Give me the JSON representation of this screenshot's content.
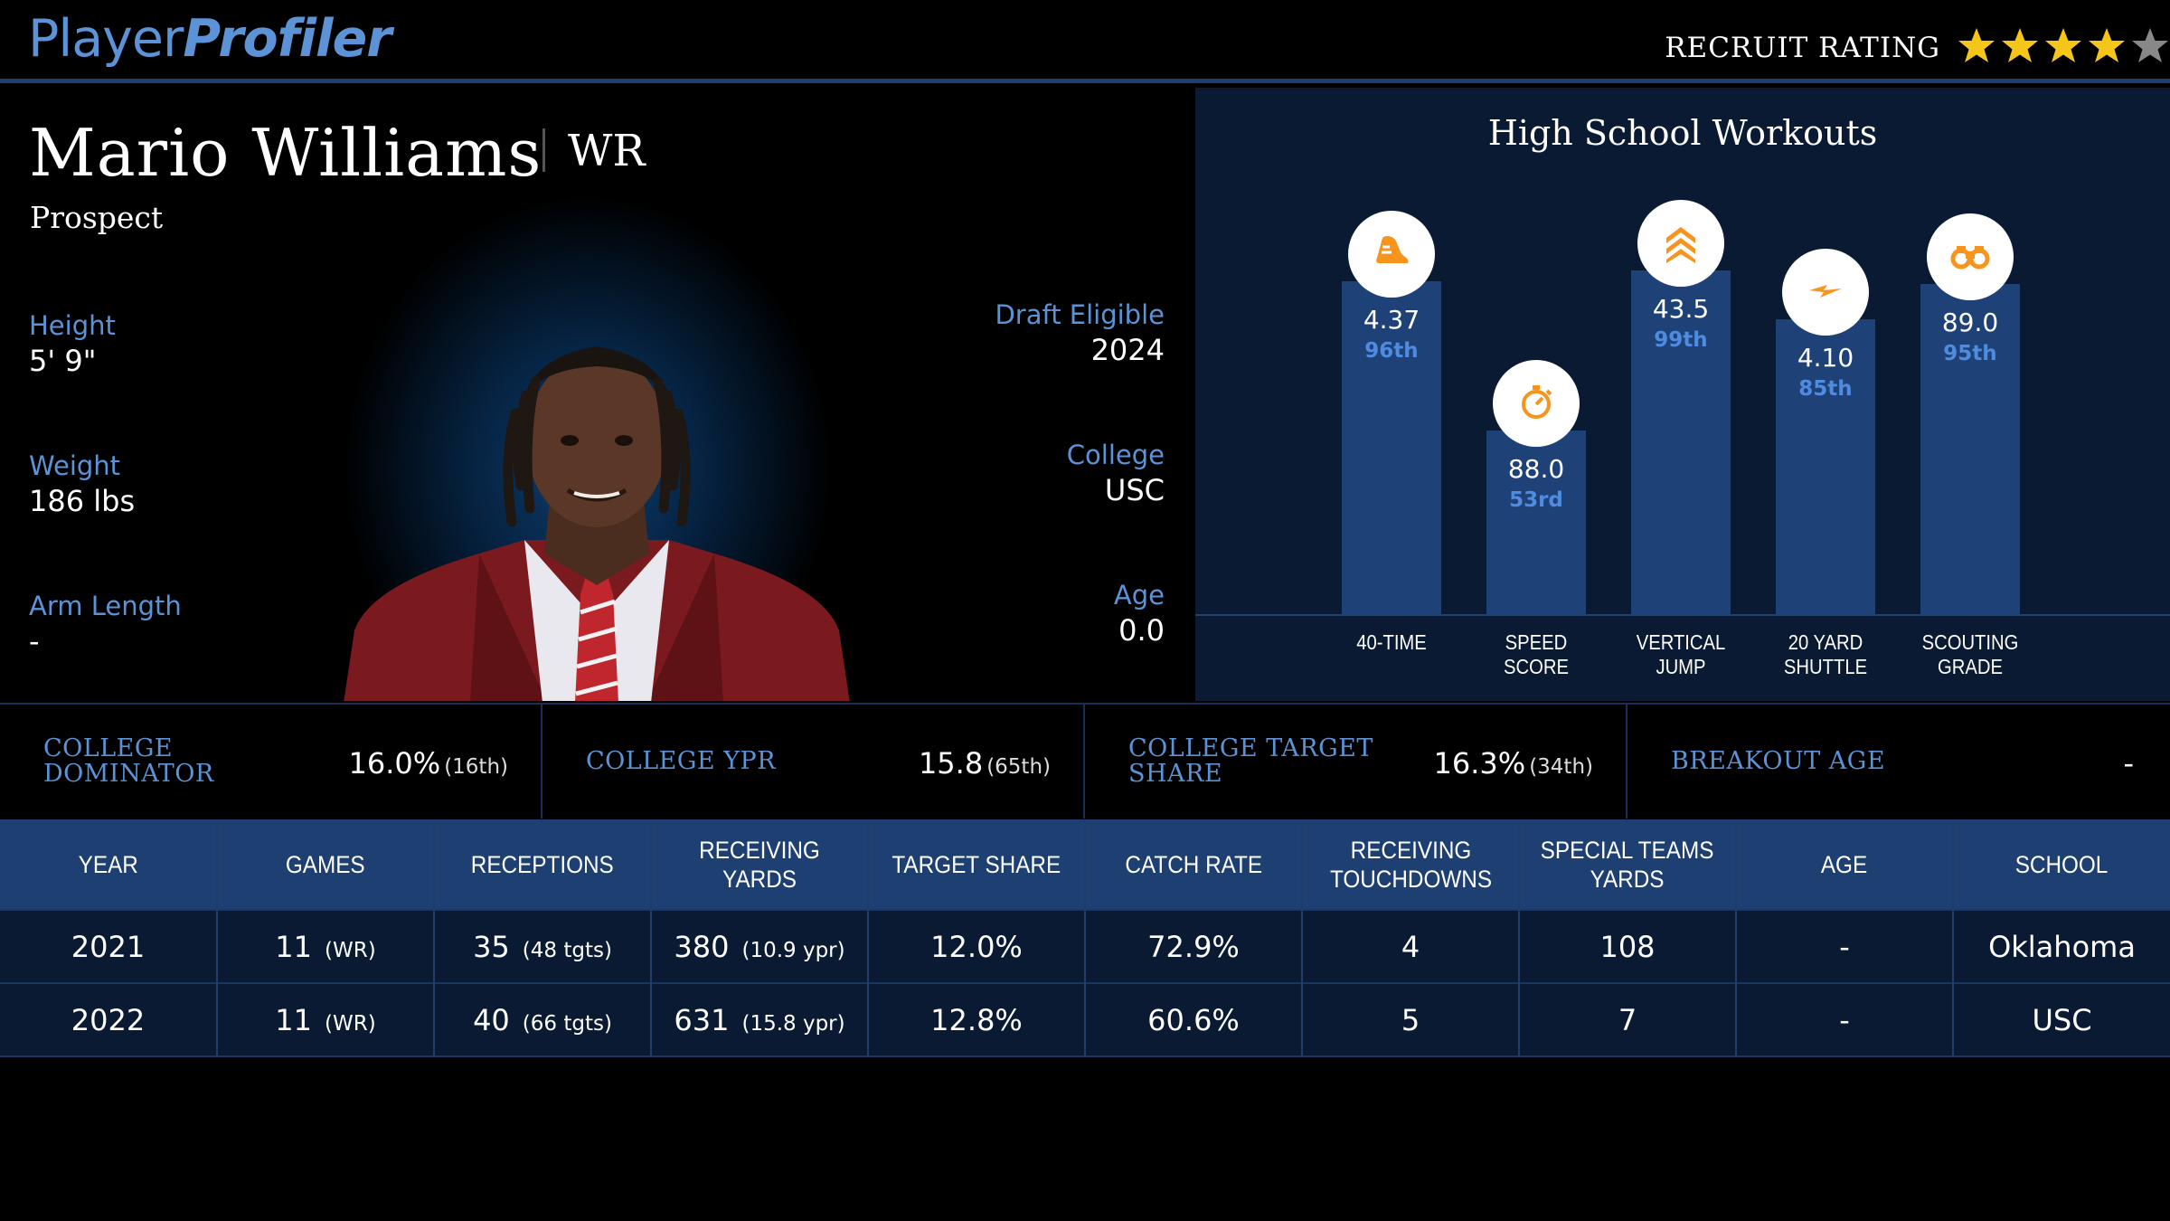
{
  "header": {
    "logo_part1": "Player",
    "logo_part2": "Profiler",
    "rating_label": "RECRUIT RATING",
    "stars_filled": 4,
    "stars_total": 5,
    "star_color": "#f5c518"
  },
  "player": {
    "name": "Mario Williams",
    "position": "WR",
    "status": "Prospect",
    "left_attrs": [
      {
        "label": "Height",
        "value": "5' 9\""
      },
      {
        "label": "Weight",
        "value": "186 lbs"
      },
      {
        "label": "Arm Length",
        "value": "-"
      }
    ],
    "right_attrs": [
      {
        "label": "Draft Eligible",
        "value": "2024"
      },
      {
        "label": "College",
        "value": "USC"
      },
      {
        "label": "Age",
        "value": "0.0"
      }
    ]
  },
  "workouts": {
    "title": "High School Workouts",
    "icon_color": "#f7941d",
    "items": [
      {
        "value": "4.37",
        "percentile": "96th",
        "pct_num": 96,
        "label_line1": "40-TIME",
        "label_line2": "",
        "icon": "shoe-icon"
      },
      {
        "value": "88.0",
        "percentile": "53rd",
        "pct_num": 53,
        "label_line1": "SPEED",
        "label_line2": "SCORE",
        "icon": "stopwatch-icon"
      },
      {
        "value": "43.5",
        "percentile": "99th",
        "pct_num": 99,
        "label_line1": "VERTICAL",
        "label_line2": "JUMP",
        "icon": "chevrons-up-icon"
      },
      {
        "value": "4.10",
        "percentile": "85th",
        "pct_num": 85,
        "label_line1": "20 YARD",
        "label_line2": "SHUTTLE",
        "icon": "lightning-icon"
      },
      {
        "value": "89.0",
        "percentile": "95th",
        "pct_num": 95,
        "label_line1": "SCOUTING",
        "label_line2": "GRADE",
        "icon": "binoculars-icon"
      }
    ]
  },
  "metrics": [
    {
      "label": "COLLEGE DOMINATOR",
      "value": "16.0%",
      "rank": "(16th)"
    },
    {
      "label": "COLLEGE YPR",
      "value": "15.8",
      "rank": "(65th)"
    },
    {
      "label": "COLLEGE TARGET SHARE",
      "value": "16.3%",
      "rank": "(34th)"
    },
    {
      "label": "BREAKOUT AGE",
      "value": "-",
      "rank": ""
    }
  ],
  "table": {
    "columns": [
      {
        "line1": "YEAR",
        "line2": ""
      },
      {
        "line1": "GAMES",
        "line2": ""
      },
      {
        "line1": "RECEPTIONS",
        "line2": ""
      },
      {
        "line1": "RECEIVING YARDS",
        "line2": ""
      },
      {
        "line1": "TARGET SHARE",
        "line2": ""
      },
      {
        "line1": "CATCH RATE",
        "line2": ""
      },
      {
        "line1": "RECEIVING",
        "line2": "TOUCHDOWNS"
      },
      {
        "line1": "SPECIAL TEAMS",
        "line2": "YARDS"
      },
      {
        "line1": "AGE",
        "line2": ""
      },
      {
        "line1": "SCHOOL",
        "line2": ""
      }
    ],
    "rows": [
      {
        "year": "2021",
        "games": "11",
        "games_note": "(WR)",
        "receptions": "35",
        "receptions_note": "(48 tgts)",
        "rec_yards": "380",
        "rec_yards_note": "(10.9 ypr)",
        "target_share": "12.0%",
        "catch_rate": "72.9%",
        "rec_td": "4",
        "st_yards": "108",
        "age": "-",
        "school": "Oklahoma"
      },
      {
        "year": "2022",
        "games": "11",
        "games_note": "(WR)",
        "receptions": "40",
        "receptions_note": "(66 tgts)",
        "rec_yards": "631",
        "rec_yards_note": "(15.8 ypr)",
        "target_share": "12.8%",
        "catch_rate": "60.6%",
        "rec_td": "5",
        "st_yards": "7",
        "age": "-",
        "school": "USC"
      }
    ]
  }
}
